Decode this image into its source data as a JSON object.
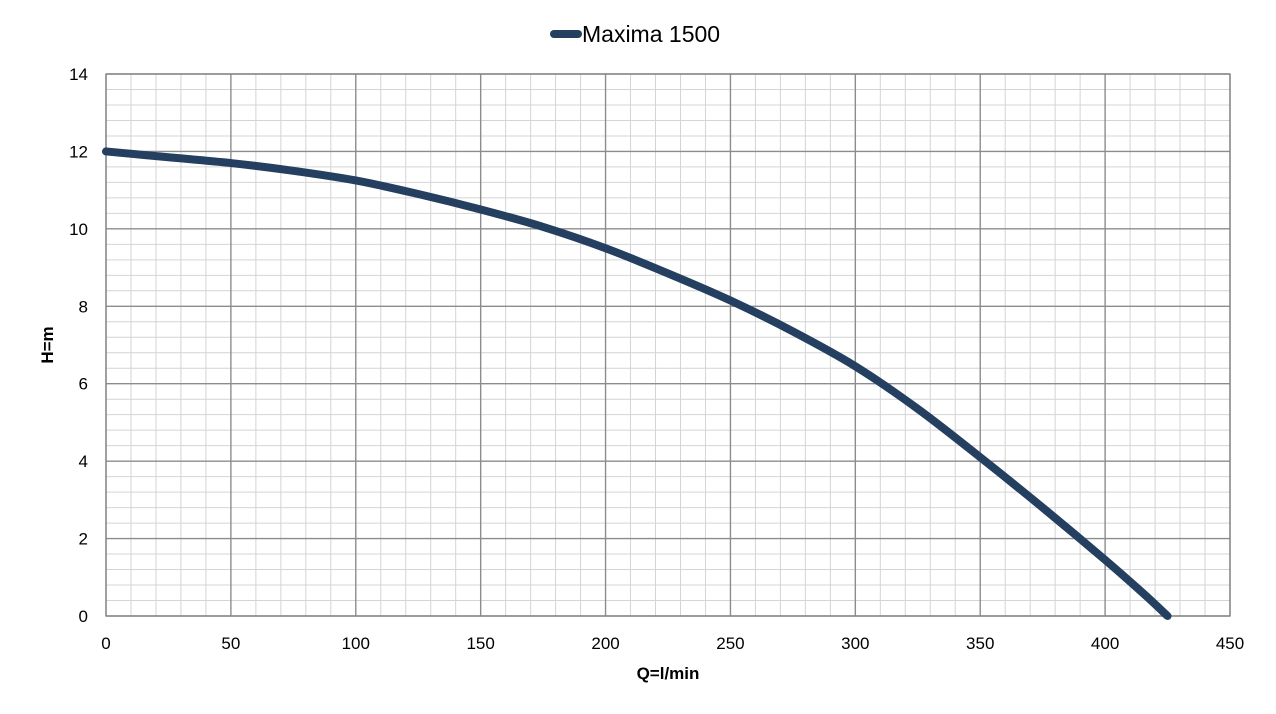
{
  "chart_data": {
    "type": "line",
    "title": "",
    "xlabel": "Q=l/min",
    "ylabel": "H=m",
    "xlim": [
      0,
      450
    ],
    "ylim": [
      0,
      14
    ],
    "x_major_step": 50,
    "y_major_step": 2,
    "x_minor_step": 10,
    "y_minor_step": 0.4,
    "grid": true,
    "legend": "top-center",
    "x_ticks": [
      "0",
      "50",
      "100",
      "150",
      "200",
      "250",
      "300",
      "350",
      "400",
      "450"
    ],
    "y_ticks": [
      "0",
      "2",
      "4",
      "6",
      "8",
      "10",
      "12",
      "14"
    ],
    "series": [
      {
        "name": "Maxima 1500",
        "color": "#243F60",
        "x": [
          0,
          25,
          50,
          75,
          100,
          125,
          150,
          175,
          200,
          225,
          250,
          275,
          300,
          325,
          350,
          375,
          400,
          415,
          425
        ],
        "y": [
          12.0,
          11.85,
          11.7,
          11.5,
          11.25,
          10.9,
          10.5,
          10.05,
          9.5,
          8.85,
          8.15,
          7.35,
          6.45,
          5.35,
          4.1,
          2.8,
          1.45,
          0.6,
          0.0
        ]
      }
    ]
  }
}
